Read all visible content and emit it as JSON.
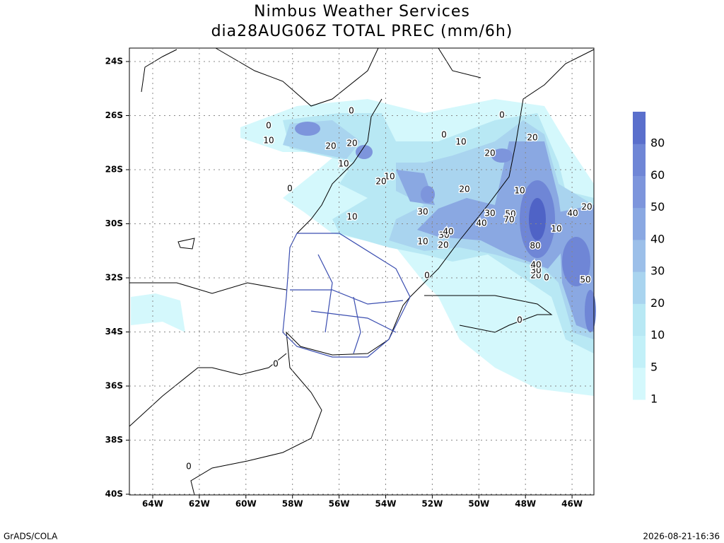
{
  "header": {
    "title": "Nimbus Weather Services",
    "subtitle": "dia28AUG06Z TOTAL PREC (mm/6h)"
  },
  "latitude_labels": [
    "24S",
    "26S",
    "28S",
    "30S",
    "32S",
    "34S",
    "36S",
    "38S",
    "40S"
  ],
  "longitude_labels": [
    "64W",
    "62W",
    "60W",
    "58W",
    "56W",
    "54W",
    "52W",
    "50W",
    "48W",
    "46W"
  ],
  "colorbar": {
    "labels": [
      "1",
      "5",
      "10",
      "20",
      "30",
      "40",
      "50",
      "60",
      "80"
    ]
  },
  "contour_labels": [
    "0",
    "0",
    "0",
    "0",
    "0",
    "0",
    "0",
    "0",
    "0",
    "0",
    "10",
    "10",
    "10",
    "10",
    "10",
    "10",
    "10",
    "10",
    "20",
    "20",
    "20",
    "20",
    "20",
    "20",
    "20",
    "20",
    "20",
    "30",
    "30",
    "30",
    "30",
    "40",
    "40",
    "40",
    "40",
    "50",
    "50",
    "70",
    "80"
  ],
  "footer": {
    "left": "GrADS/COLA",
    "right": "2026-08-21-16:36"
  }
}
